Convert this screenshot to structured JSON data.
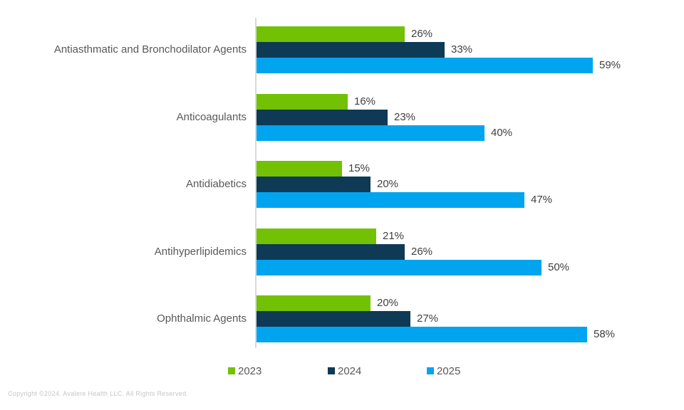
{
  "chart_data": {
    "type": "bar",
    "orientation": "horizontal",
    "title": "",
    "xlabel": "",
    "ylabel": "",
    "xlim": [
      0,
      70
    ],
    "grid": false,
    "legend_position": "bottom",
    "value_suffix": "%",
    "categories": [
      "Antiasthmatic and Bronchodilator Agents",
      "Anticoagulants",
      "Antidiabetics",
      "Antihyperlipidemics",
      "Ophthalmic Agents"
    ],
    "series": [
      {
        "name": "2023",
        "color": "#72c105",
        "values": [
          26,
          16,
          15,
          21,
          20
        ]
      },
      {
        "name": "2024",
        "color": "#0e3a56",
        "values": [
          33,
          23,
          20,
          26,
          27
        ]
      },
      {
        "name": "2025",
        "color": "#00a4ef",
        "values": [
          59,
          40,
          47,
          50,
          58
        ]
      }
    ],
    "data_labels": [
      [
        "26%",
        "33%",
        "59%"
      ],
      [
        "16%",
        "23%",
        "40%"
      ],
      [
        "15%",
        "20%",
        "47%"
      ],
      [
        "21%",
        "26%",
        "50%"
      ],
      [
        "20%",
        "27%",
        "58%"
      ]
    ]
  },
  "footer": {
    "copyright": "Copyright ©2024. Avalere Health LLC. All Rights Reserved."
  }
}
